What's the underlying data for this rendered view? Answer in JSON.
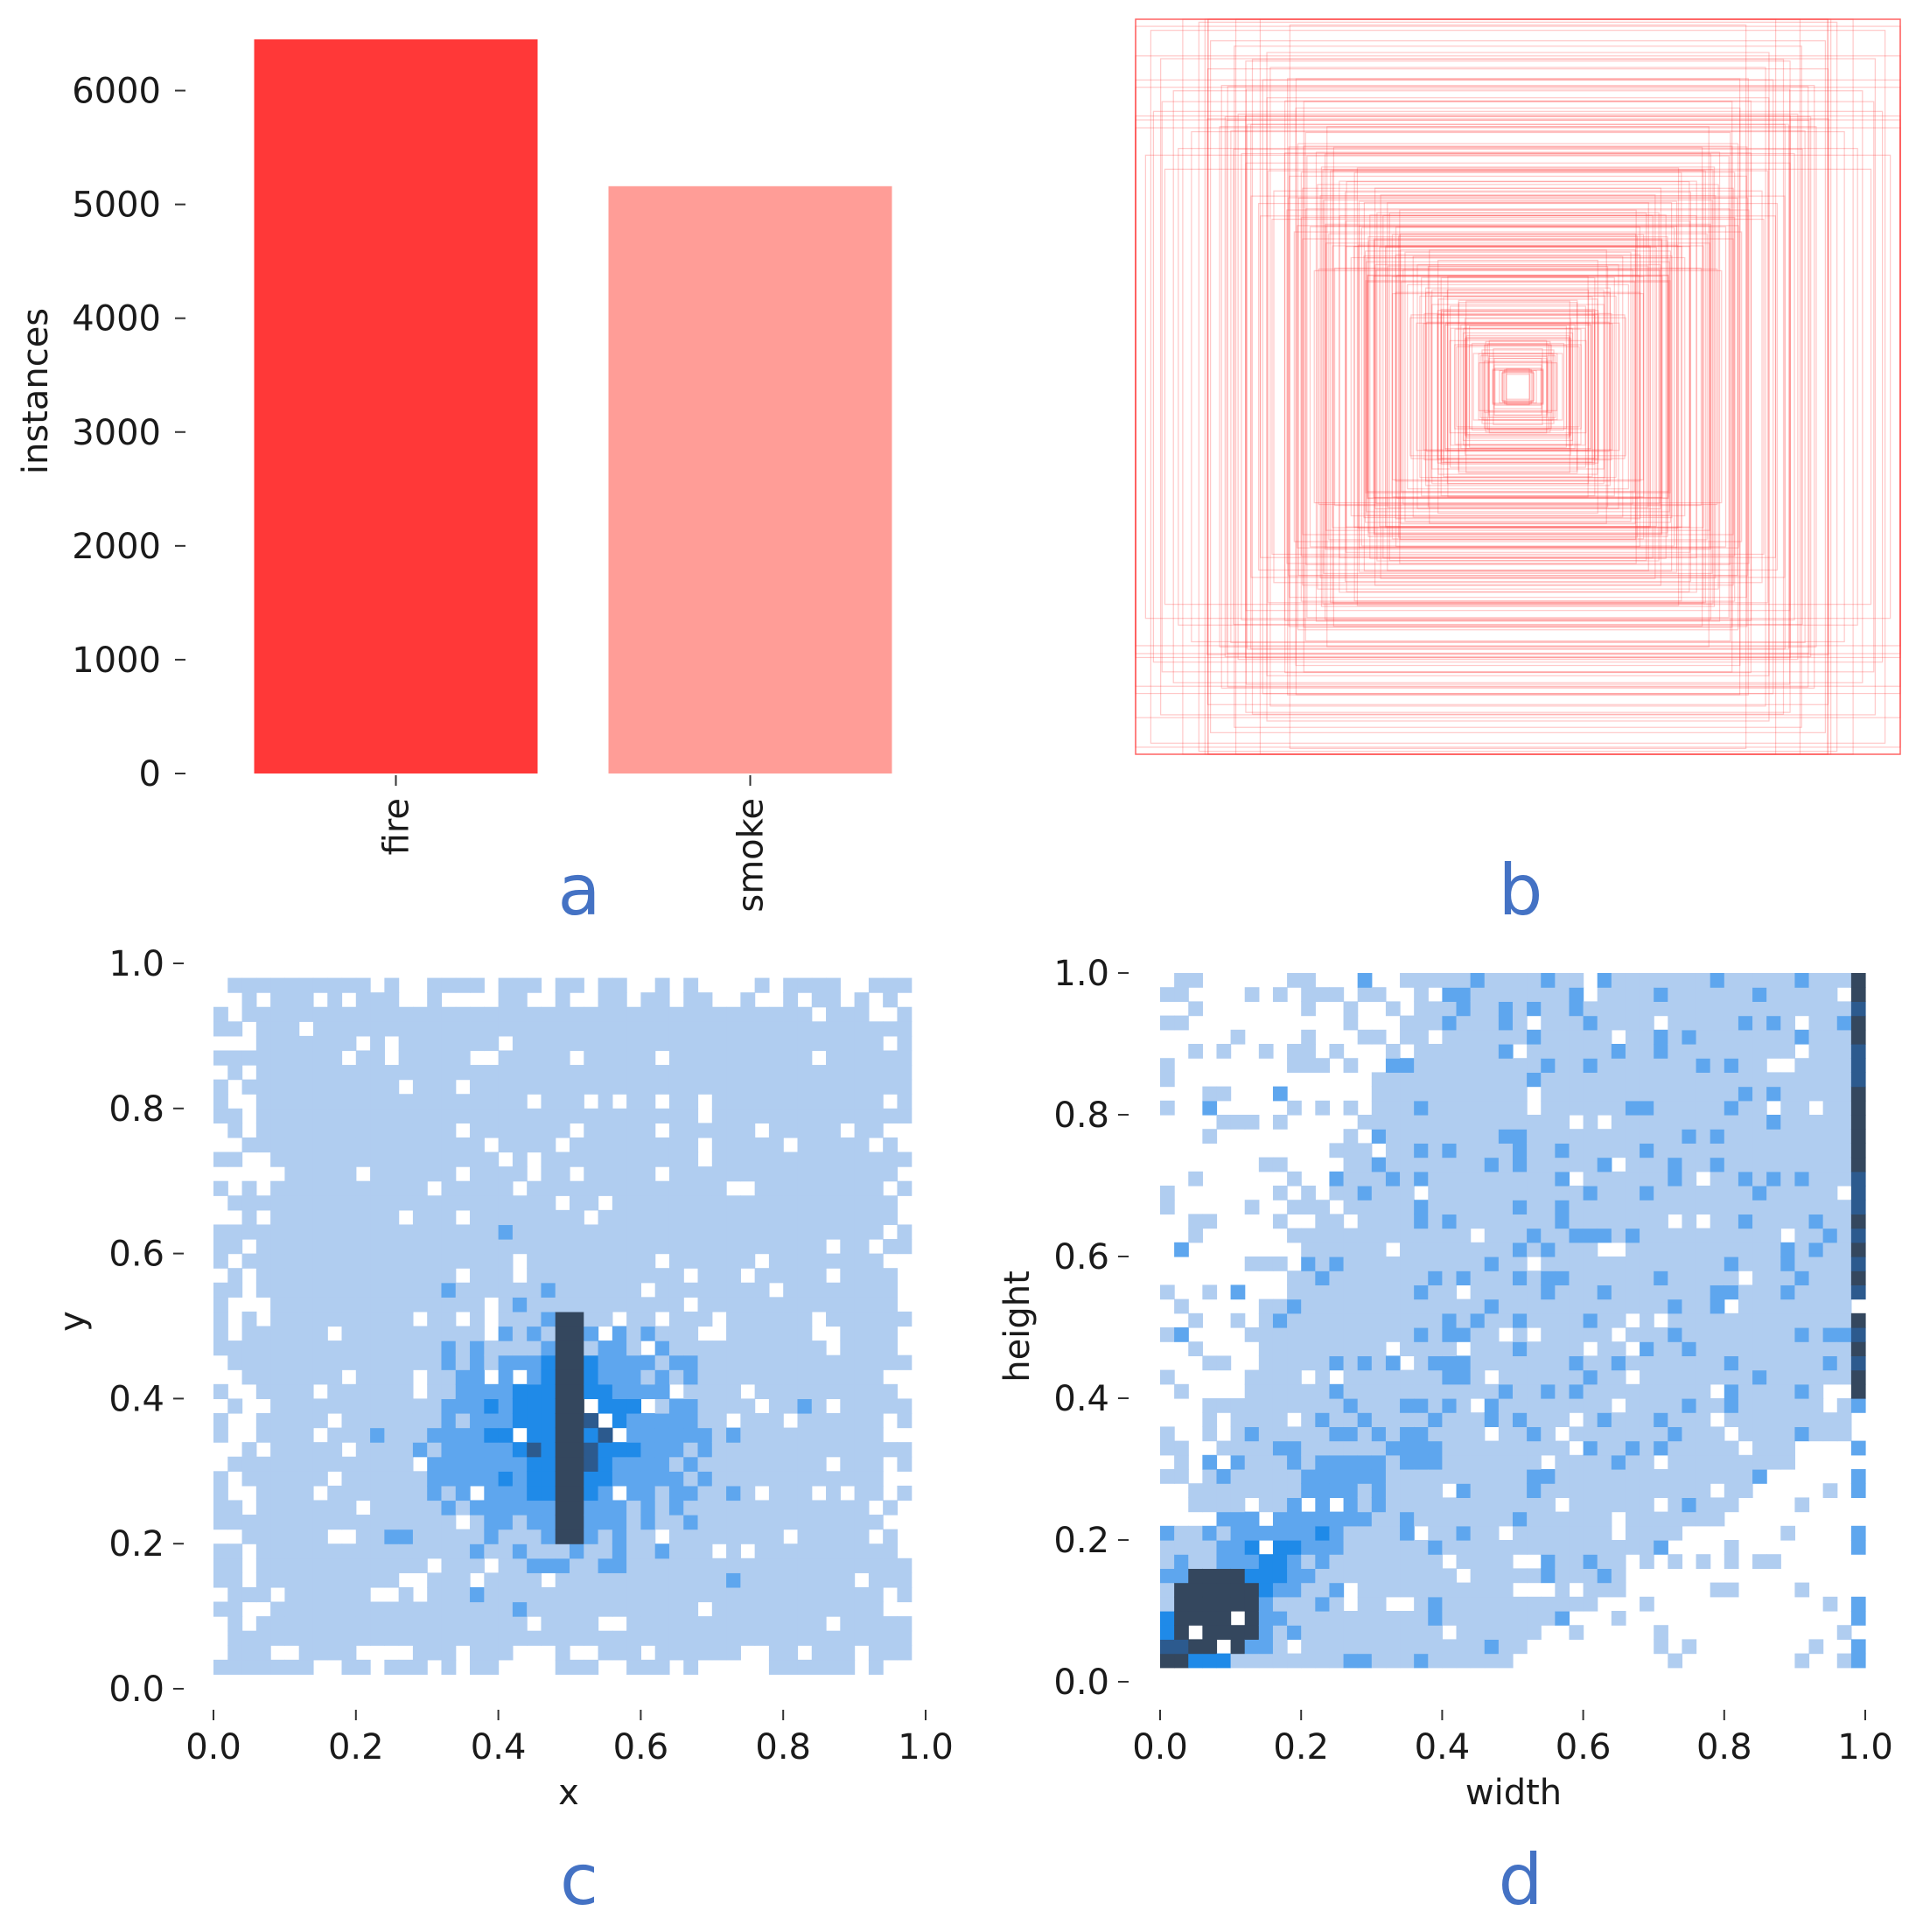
{
  "chart_data": [
    {
      "panel": "a",
      "type": "bar",
      "categories": [
        "fire",
        "smoke"
      ],
      "values": [
        6450,
        5160
      ],
      "colors": [
        "#ff3838",
        "#ff9d97"
      ],
      "xlabel": "",
      "ylabel": "instances",
      "ylim": [
        0,
        6450
      ],
      "yticks": [
        0,
        1000,
        2000,
        3000,
        4000,
        5000,
        6000
      ],
      "ytick_labels": [
        "0",
        "1000",
        "2000",
        "3000",
        "4000",
        "5000",
        "6000"
      ],
      "grid": false
    },
    {
      "panel": "b",
      "type": "other",
      "description_key": "overlaid bounding boxes centered at (0.5, 0.5)",
      "box_color": "#ff3838",
      "box_sizes": [
        0.04,
        0.06,
        0.08,
        0.1,
        0.12,
        0.14,
        0.16,
        0.18,
        0.2,
        0.22,
        0.24,
        0.26,
        0.28,
        0.3,
        0.32,
        0.34,
        0.36,
        0.38,
        0.4,
        0.42,
        0.44,
        0.46,
        0.48,
        0.5,
        0.52,
        0.55,
        0.58,
        0.6,
        0.63,
        0.66,
        0.7,
        0.73,
        0.76,
        0.8,
        0.84,
        0.88,
        0.92,
        0.96,
        1.0
      ]
    },
    {
      "panel": "c",
      "type": "heatmap",
      "xlabel": "x",
      "ylabel": "y",
      "xlim": [
        0,
        1
      ],
      "ylim": [
        0,
        1
      ],
      "xticks": [
        0.0,
        0.2,
        0.4,
        0.6,
        0.8,
        1.0
      ],
      "xtick_labels": [
        "0.0",
        "0.2",
        "0.4",
        "0.6",
        "0.8",
        "1.0"
      ],
      "yticks": [
        0.0,
        0.2,
        0.4,
        0.6,
        0.8,
        1.0
      ],
      "ytick_labels": [
        "0.0",
        "0.2",
        "0.4",
        "0.6",
        "0.8",
        "1.0"
      ],
      "bins": 50,
      "color_scale": [
        "#b0cdf0",
        "#5ea6ee",
        "#1f8ae8",
        "#2c5a8e",
        "#34475e"
      ],
      "data_extent": {
        "x": [
          0.0,
          0.98
        ],
        "y": [
          0.02,
          0.98
        ]
      },
      "hotspots": [
        {
          "x": 0.5,
          "y": [
            0.2,
            0.52
          ],
          "value": 1.0,
          "note": "dense vertical streak"
        },
        {
          "x": 0.5,
          "y": 0.35,
          "value": 0.7
        }
      ]
    },
    {
      "panel": "d",
      "type": "heatmap",
      "xlabel": "width",
      "ylabel": "height",
      "xlim": [
        0,
        1
      ],
      "ylim": [
        0,
        1
      ],
      "xticks": [
        0.0,
        0.2,
        0.4,
        0.6,
        0.8,
        1.0
      ],
      "xtick_labels": [
        "0.0",
        "0.2",
        "0.4",
        "0.6",
        "0.8",
        "1.0"
      ],
      "yticks": [
        0.0,
        0.2,
        0.4,
        0.6,
        0.8,
        1.0
      ],
      "ytick_labels": [
        "0.0",
        "0.2",
        "0.4",
        "0.6",
        "0.8",
        "1.0"
      ],
      "bins": 50,
      "color_scale": [
        "#b0cdf0",
        "#5ea6ee",
        "#1f8ae8",
        "#2c5a8e",
        "#34475e"
      ],
      "data_extent": {
        "x": [
          0.01,
          1.0
        ],
        "y": [
          0.02,
          1.0
        ]
      },
      "hotspots": [
        {
          "x": 0.08,
          "y": 0.1,
          "value": 1.0,
          "note": "dense cluster near origin"
        },
        {
          "x": 1.0,
          "y": [
            0.4,
            1.0
          ],
          "value": 0.9,
          "note": "dense column at width 1.0"
        }
      ]
    }
  ],
  "panel_labels": {
    "a": "a",
    "b": "b",
    "c": "c",
    "d": "d"
  }
}
